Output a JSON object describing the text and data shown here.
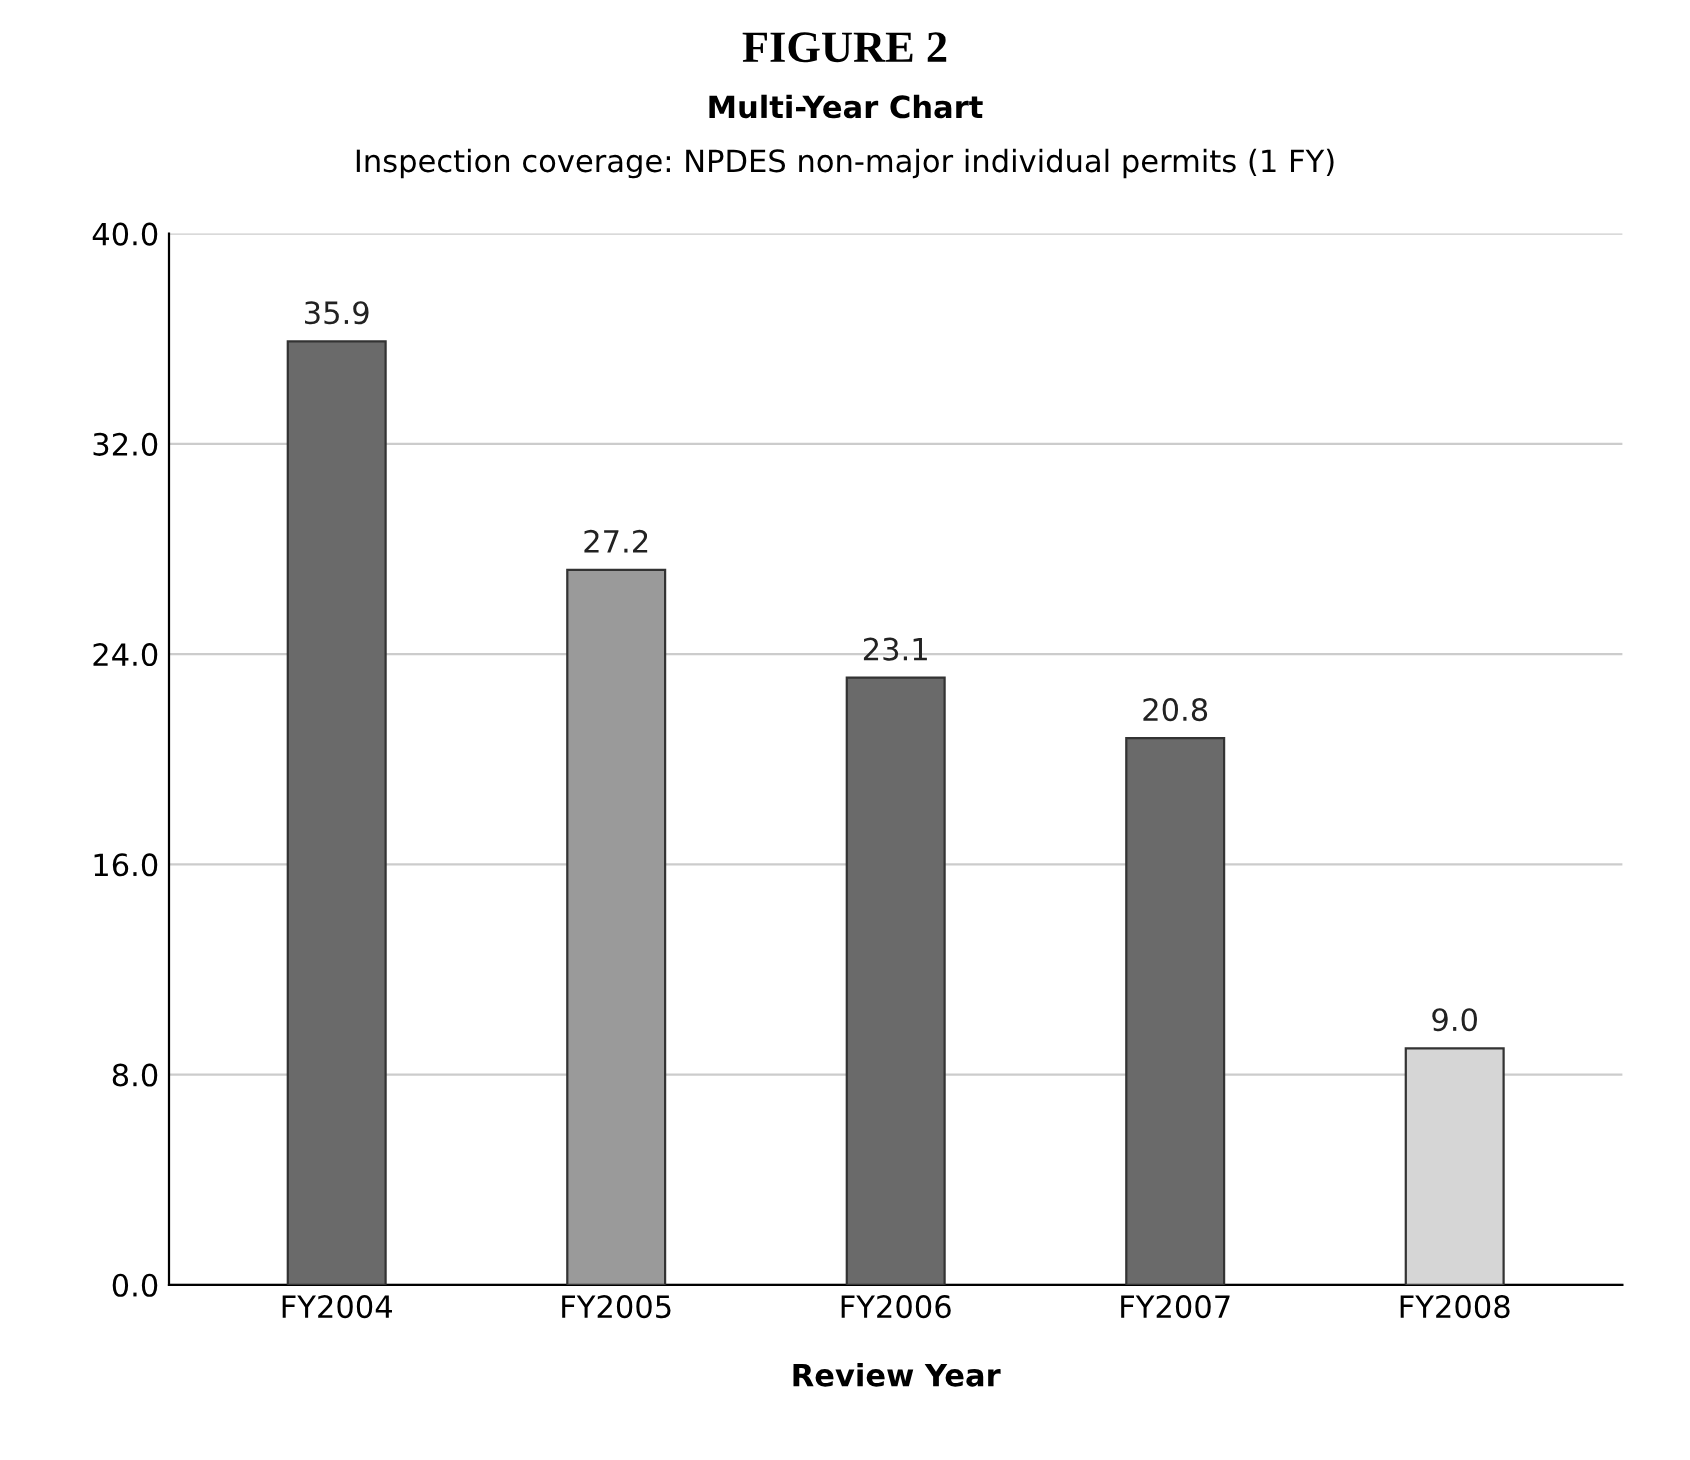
{
  "chart_data": {
    "type": "bar",
    "title": "FIGURE 2",
    "subtitle": "Multi-Year Chart",
    "annotations": [
      "Inspection coverage: NPDES non-major individual permits (1 FY)"
    ],
    "xlabel": "Review Year",
    "categories": [
      "FY2004",
      "FY2005",
      "FY2006",
      "FY2007",
      "FY2008"
    ],
    "values": [
      35.9,
      27.2,
      23.1,
      20.8,
      9.0
    ],
    "colors": [
      "#6a6a6a",
      "#9a9a9a",
      "#6a6a6a",
      "#6a6a6a",
      "#d6d6d6"
    ],
    "value_labels": [
      "35.9",
      "27.2",
      "23.1",
      "20.8",
      "9.0"
    ],
    "ylim": [
      0,
      40
    ],
    "yticks": [
      {
        "value": 0,
        "label": "0.0"
      },
      {
        "value": 8,
        "label": "8.0"
      },
      {
        "value": 16,
        "label": "16.0"
      },
      {
        "value": 24,
        "label": "24.0"
      },
      {
        "value": 32,
        "label": "32.0"
      },
      {
        "value": 40,
        "label": "40.0"
      }
    ],
    "grid": "y"
  }
}
